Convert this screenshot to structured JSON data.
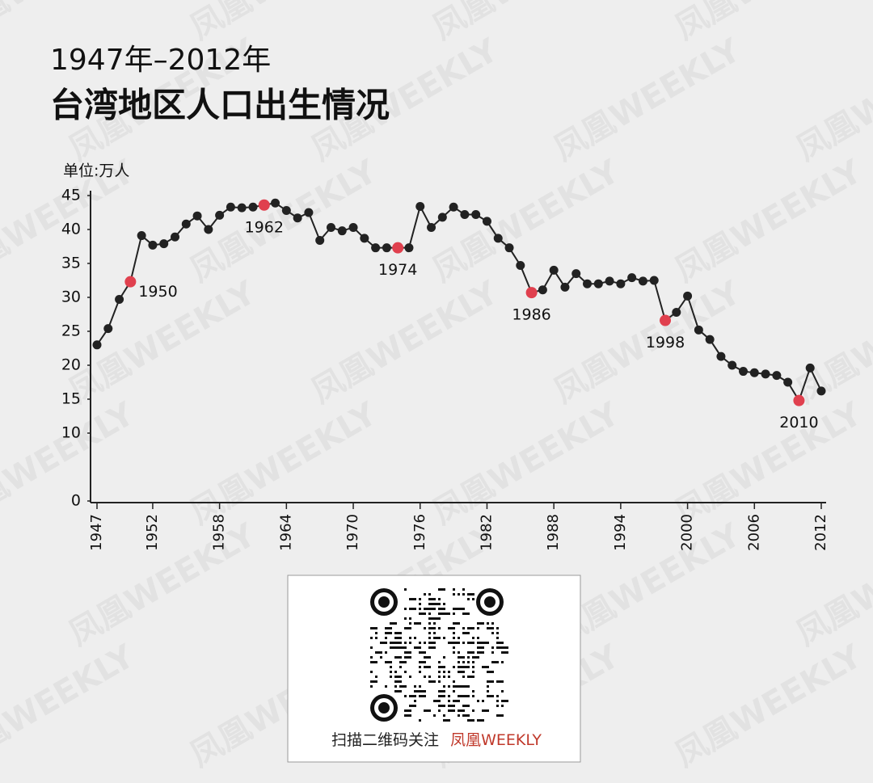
{
  "chart_data": {
    "type": "line",
    "title": "台湾地区人口出生情况",
    "subtitle": "1947年–2012年",
    "y_unit_label": "单位:万人",
    "x": [
      1947,
      1948,
      1949,
      1950,
      1951,
      1952,
      1953,
      1954,
      1955,
      1956,
      1957,
      1958,
      1959,
      1960,
      1961,
      1962,
      1963,
      1964,
      1965,
      1966,
      1967,
      1968,
      1969,
      1970,
      1971,
      1972,
      1973,
      1974,
      1975,
      1976,
      1977,
      1978,
      1979,
      1980,
      1981,
      1982,
      1983,
      1984,
      1985,
      1986,
      1987,
      1988,
      1989,
      1990,
      1991,
      1992,
      1993,
      1994,
      1995,
      1996,
      1997,
      1998,
      1999,
      2000,
      2001,
      2002,
      2003,
      2004,
      2005,
      2006,
      2007,
      2008,
      2009,
      2010,
      2011,
      2012
    ],
    "values": [
      23.0,
      25.4,
      29.7,
      32.3,
      39.1,
      37.7,
      37.9,
      38.9,
      40.8,
      42.0,
      40.0,
      42.1,
      43.3,
      43.2,
      43.3,
      43.6,
      43.9,
      42.8,
      41.7,
      42.5,
      38.4,
      40.3,
      39.8,
      40.3,
      38.7,
      37.3,
      37.3,
      37.3,
      37.3,
      43.4,
      40.3,
      41.8,
      43.3,
      42.2,
      42.2,
      41.2,
      38.7,
      37.3,
      34.7,
      30.7,
      31.1,
      34.0,
      31.5,
      33.5,
      32.0,
      32.0,
      32.4,
      32.0,
      32.9,
      32.4,
      32.5,
      26.6,
      27.8,
      30.2,
      25.2,
      23.8,
      21.3,
      20.0,
      19.1,
      18.9,
      18.7,
      18.5,
      17.5,
      14.8,
      19.6,
      16.2
    ],
    "color": "#222222",
    "highlights": [
      1950,
      1962,
      1974,
      1986,
      1998,
      2010
    ],
    "highlight_color": "#e0404e",
    "xlim": [
      1947,
      2012
    ],
    "xticks": [
      1947,
      1952,
      1958,
      1964,
      1970,
      1976,
      1982,
      1988,
      1994,
      2000,
      2006,
      2012
    ],
    "ylim": [
      0,
      45
    ],
    "yticks": [
      0,
      10,
      15,
      20,
      25,
      30,
      35,
      40,
      45
    ]
  },
  "footer": {
    "caption": "扫描二维码关注",
    "brand": "凤凰WEEKLY"
  },
  "watermark": "凤凰WEEKLY"
}
